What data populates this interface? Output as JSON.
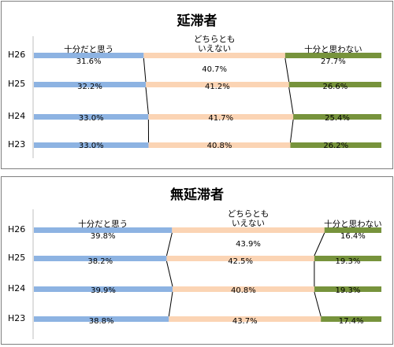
{
  "chart_data": [
    {
      "type": "bar",
      "stacked": "percent",
      "orientation": "horizontal",
      "title": "延滞者",
      "categories": [
        "H26",
        "H25",
        "H24",
        "H23"
      ],
      "series": [
        {
          "name": "十分だと思う",
          "values": [
            31.6,
            32.2,
            33.0,
            33.0
          ]
        },
        {
          "name": "どちらとも\nいえない",
          "values": [
            40.7,
            41.2,
            41.7,
            40.8
          ]
        },
        {
          "name": "十分と思わない",
          "values": [
            27.7,
            26.6,
            25.4,
            26.2
          ]
        }
      ],
      "data_label_suffix": "%",
      "legend": "inline labels above top bar",
      "grid": false
    },
    {
      "type": "bar",
      "stacked": "percent",
      "orientation": "horizontal",
      "title": "無延滞者",
      "categories": [
        "H26",
        "H25",
        "H24",
        "H23"
      ],
      "series": [
        {
          "name": "十分だと思う",
          "values": [
            39.8,
            38.2,
            39.9,
            38.8
          ]
        },
        {
          "name": "どちらとも\nいえない",
          "values": [
            43.9,
            42.5,
            40.8,
            43.7
          ]
        },
        {
          "name": "十分と思わない",
          "values": [
            16.4,
            19.3,
            19.3,
            17.4
          ]
        }
      ],
      "data_label_suffix": "%",
      "legend": "inline labels above top bar",
      "grid": false
    }
  ],
  "colors": {
    "series": [
      "#8db3e2",
      "#fbd4b4",
      "#77933c"
    ],
    "connector": "#000000",
    "axis": "#bfbfbf",
    "panel_border": "#7f7f7f"
  }
}
